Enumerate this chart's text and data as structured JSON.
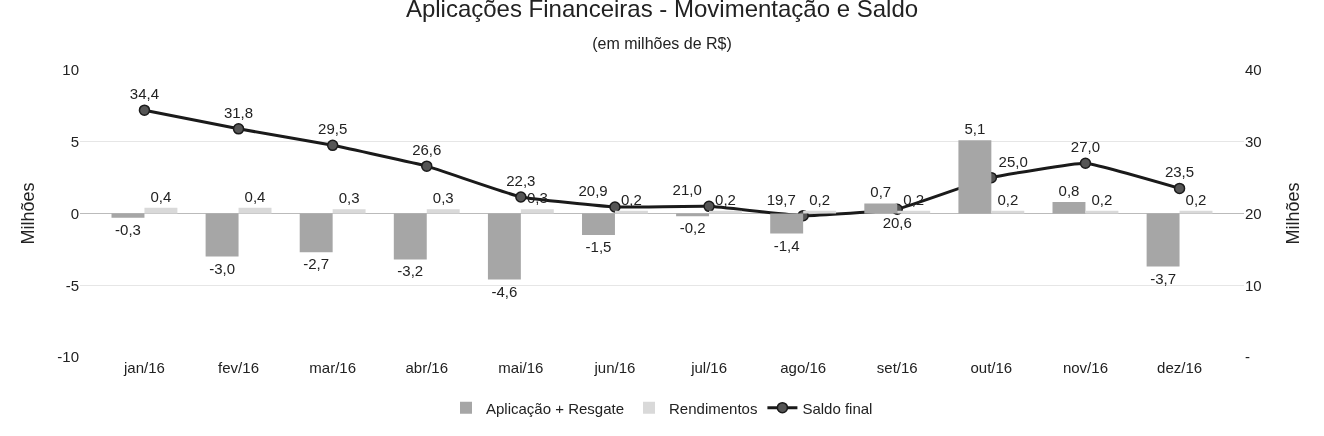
{
  "chart_data": {
    "type": "bar",
    "title": "Aplicações Financeiras - Movimentação e Saldo",
    "subtitle": "(em milhões de R$)",
    "ylabel": "Milhões",
    "y2label": "Milhões",
    "categories": [
      "jan/16",
      "fev/16",
      "mar/16",
      "abr/16",
      "mai/16",
      "jun/16",
      "jul/16",
      "ago/16",
      "set/16",
      "out/16",
      "nov/16",
      "dez/16"
    ],
    "series": [
      {
        "name": "Aplicação + Resgate",
        "color": "#a6a6a6",
        "values": [
          -0.3,
          -3.0,
          -2.7,
          -3.2,
          -4.6,
          -1.5,
          -0.2,
          -1.4,
          0.7,
          5.1,
          0.8,
          -3.7
        ],
        "value_labels": [
          "-0,3",
          "-3,0",
          "-2,7",
          "-3,2",
          "-4,6",
          "-1,5",
          "-0,2",
          "-1,4",
          "0,7",
          "5,1",
          "0,8",
          "-3,7"
        ]
      },
      {
        "name": "Rendimentos",
        "color": "#d9d9d9",
        "values": [
          0.4,
          0.4,
          0.3,
          0.3,
          0.3,
          0.2,
          0.2,
          0.2,
          0.2,
          0.2,
          0.2,
          0.2
        ],
        "value_labels": [
          "0,4",
          "0,4",
          "0,3",
          "0,3",
          "0,3",
          "0,2",
          "0,2",
          "0,2",
          "0,2",
          "0,2",
          "0,2",
          "0,2"
        ]
      },
      {
        "name": "Saldo final",
        "type": "line",
        "axis": "y2",
        "color": "#1a1a1a",
        "marker": "circle",
        "values": [
          34.4,
          31.8,
          29.5,
          26.6,
          22.3,
          20.9,
          21.0,
          19.7,
          20.6,
          25.0,
          27.0,
          23.5
        ],
        "value_labels": [
          "34,4",
          "31,8",
          "29,5",
          "26,6",
          "22,3",
          "20,9",
          "21,0",
          "19,7",
          "20,6",
          "25,0",
          "27,0",
          "23,5"
        ]
      }
    ],
    "ylim": [
      -10,
      10
    ],
    "yticks": [
      -10,
      -5,
      0,
      5,
      10
    ],
    "y2lim": [
      0,
      40
    ],
    "y2ticks": [
      {
        "value": 0,
        "label": "-"
      },
      10,
      20,
      30,
      40
    ],
    "grid": "y",
    "legend": "bottom"
  }
}
